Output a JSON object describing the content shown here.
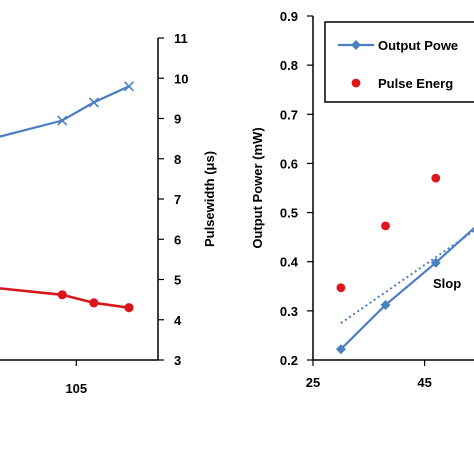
{
  "chart_data": [
    {
      "type": "line",
      "title": "",
      "x_ticks": [
        "105"
      ],
      "x_range": [
        81,
        122
      ],
      "y2label": "Pulsewidth (μs)",
      "y2lim": [
        3,
        11
      ],
      "y2_ticks": [
        "3",
        "4",
        "5",
        "6",
        "7",
        "8",
        "9",
        "10",
        "11"
      ],
      "series": [
        {
          "color": "#4a7fc1",
          "marker": "x",
          "axis": "right",
          "x": [
            81,
            101,
            110,
            120
          ],
          "values": [
            8.5,
            8.95,
            9.4,
            9.8
          ]
        },
        {
          "color": "#d9141b",
          "marker": "circle",
          "axis": "right",
          "x": [
            81,
            101,
            110,
            120
          ],
          "values": [
            4.8,
            4.62,
            4.42,
            4.3
          ]
        }
      ]
    },
    {
      "type": "line",
      "title": "",
      "xlabel": "",
      "ylabel": "Output Power (mW)",
      "ylim": [
        0.2,
        0.9
      ],
      "xlim": [
        25,
        56
      ],
      "y_ticks": [
        "0.2",
        "0.3",
        "0.4",
        "0.5",
        "0.6",
        "0.7",
        "0.8",
        "0.9"
      ],
      "x_ticks": [
        "25",
        "45"
      ],
      "legend_position": "top-right",
      "annotation": "Slop",
      "series": [
        {
          "name": "Output Powe",
          "color": "#4a7fc1",
          "marker": "diamond",
          "x": [
            30,
            38,
            47,
            55
          ],
          "values": [
            0.222,
            0.312,
            0.398,
            0.48
          ]
        },
        {
          "name": "Pulse Energ",
          "color": "#e0141b",
          "marker": "circle",
          "style": "scatter",
          "x": [
            30,
            38,
            47
          ],
          "values": [
            0.347,
            0.473,
            0.57
          ]
        },
        {
          "color": "#4a7fc1",
          "style": "dotted-trendline",
          "x": [
            30,
            56
          ],
          "values": [
            0.275,
            0.48
          ]
        }
      ]
    }
  ]
}
